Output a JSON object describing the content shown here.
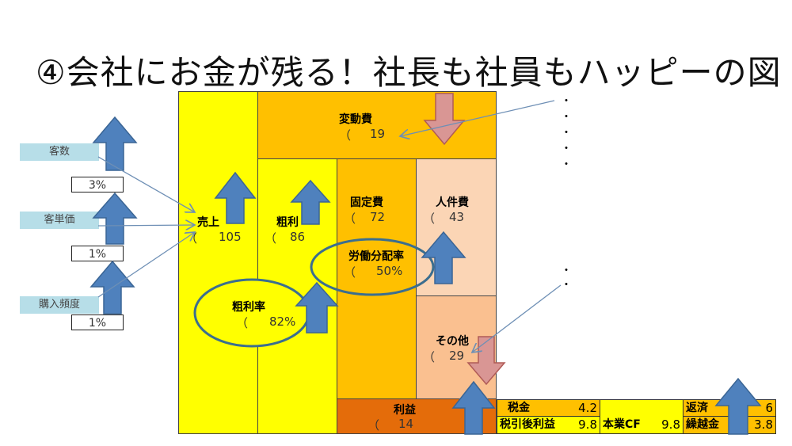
{
  "title": "④会社にお金が残る！社長も社員もハッピーの図",
  "colors": {
    "yellow": "#FFFF00",
    "orange": "#FFC000",
    "peach": "#FBD5B5",
    "salmon": "#FAC090",
    "profit": "#E46C0A",
    "up_arrow": "#4F81BD",
    "down_arrow": "#D99694",
    "side_label": "#B7DEE8"
  },
  "drivers": [
    {
      "label": "客数",
      "pct": "3%"
    },
    {
      "label": "客単価",
      "pct": "1%"
    },
    {
      "label": "購入頻度",
      "pct": "1%"
    }
  ],
  "blocks": {
    "sales": {
      "label": "売上",
      "value": "105"
    },
    "variable_cost": {
      "label": "変動費",
      "value": "19"
    },
    "gross_profit": {
      "label": "粗利",
      "value": "86"
    },
    "fixed_cost": {
      "label": "固定費",
      "value": "72"
    },
    "personnel": {
      "label": "人件費",
      "value": "43"
    },
    "labor_share": {
      "label": "労働分配率",
      "value": "50%"
    },
    "other": {
      "label": "その他",
      "value": "29"
    },
    "profit": {
      "label": "利益",
      "value": "14"
    },
    "gross_margin": {
      "label": "粗利率",
      "value": "82%"
    },
    "paren": "（"
  },
  "table": {
    "tax": {
      "label": "税金",
      "value": "4.2"
    },
    "after_tax": {
      "label": "税引後利益",
      "value": "9.8"
    },
    "cf": {
      "label": "本業CF",
      "value": "9.8"
    },
    "repay": {
      "label": "返済",
      "value": "6"
    },
    "carry": {
      "label": "繰越金",
      "value": "3.8"
    }
  },
  "dots": "・"
}
